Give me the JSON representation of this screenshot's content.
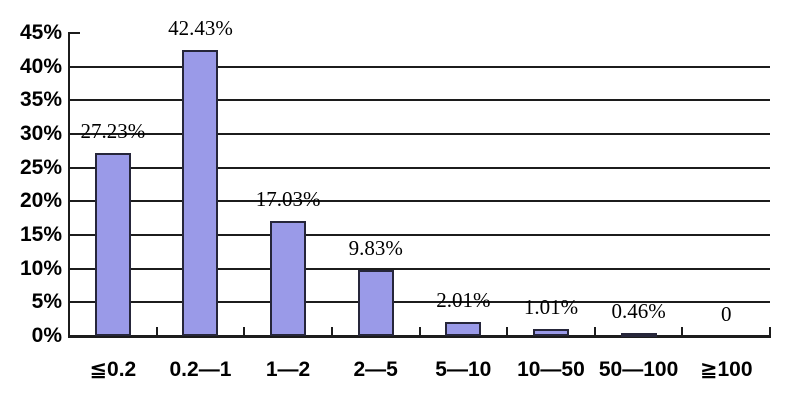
{
  "chart_data": {
    "type": "bar",
    "title": "",
    "xlabel": "",
    "ylabel": "",
    "categories": [
      "≦0.2",
      "0.2—1",
      "1—2",
      "2—5",
      "5—10",
      "10—50",
      "50—100",
      "≧100"
    ],
    "values": [
      27.23,
      42.43,
      17.03,
      9.83,
      2.01,
      1.01,
      0.46,
      0
    ],
    "point_labels": [
      "27.23%",
      "42.43%",
      "17.03%",
      "9.83%",
      "2.01%",
      "1.01%",
      "0.46%",
      "0"
    ],
    "y_tick_values": [
      0,
      5,
      10,
      15,
      20,
      25,
      30,
      35,
      40,
      45
    ],
    "y_tick_labels": [
      "0%",
      "5%",
      "10%",
      "15%",
      "20%",
      "25%",
      "30%",
      "35%",
      "40%",
      "45%"
    ],
    "ylim": [
      0,
      45
    ],
    "grid": true,
    "legend_position": "none"
  },
  "colors": {
    "bar_fill": "#9a9ae8",
    "bar_border": "#26263a",
    "grid": "#1c1c1c",
    "axis": "#1c1c1c",
    "text": "#000000",
    "background": "#ffffff"
  }
}
